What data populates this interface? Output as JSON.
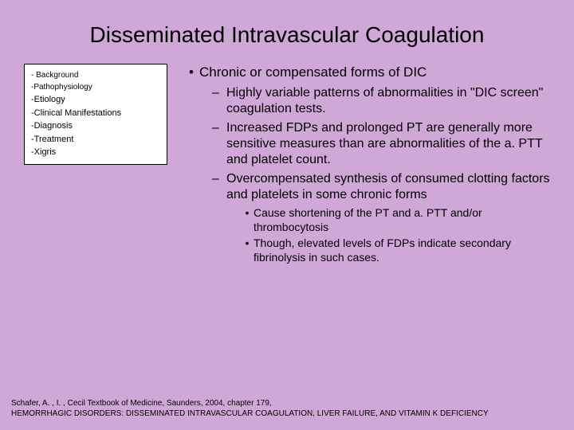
{
  "colors": {
    "background": "#d0a8d8",
    "sidebar_bg": "#ffffff",
    "sidebar_border": "#000000",
    "text": "#000000"
  },
  "typography": {
    "title_fontsize": 28,
    "body_fontsize": 17,
    "sub_fontsize": 16,
    "subsub_fontsize": 14,
    "sidebar_fontsize": 11,
    "sidebar_small_fontsize": 10,
    "footer_fontsize": 10,
    "font_family": "Arial"
  },
  "title": "Disseminated Intravascular Coagulation",
  "sidebar": {
    "items": [
      {
        "text": "- Background",
        "small": true
      },
      {
        "text": "-Pathophysiology",
        "small": true
      },
      {
        "text": "-Etiology",
        "small": false
      },
      {
        "text": "-Clinical Manifestations",
        "small": false
      },
      {
        "text": "-Diagnosis",
        "small": false
      },
      {
        "text": "-Treatment",
        "small": false
      },
      {
        "text": "-Xigris",
        "small": false
      }
    ]
  },
  "content": {
    "level1": [
      {
        "text": "Chronic or compensated forms of DIC",
        "level2": [
          {
            "text": "Highly variable patterns of abnormalities in \"DIC screen\" coagulation tests."
          },
          {
            "text": "Increased FDPs and prolonged PT are generally more sensitive measures than are abnormalities of the a. PTT and platelet count."
          },
          {
            "text": "Overcompensated synthesis of consumed clotting factors and platelets in some chronic forms",
            "level3": [
              {
                "text": "Cause shortening of the PT and a. PTT and/or thrombocytosis"
              },
              {
                "text": "Though, elevated levels of FDPs indicate secondary fibrinolysis in such cases."
              }
            ]
          }
        ]
      }
    ]
  },
  "footer": {
    "line1": "Schafer, A. , I. , Cecil Textbook of Medicine, Saunders, 2004, chapter 179,",
    "line2": "HEMORRHAGIC DISORDERS: DISSEMINATED INTRAVASCULAR COAGULATION, LIVER FAILURE, AND VITAMIN K DEFICIENCY"
  }
}
